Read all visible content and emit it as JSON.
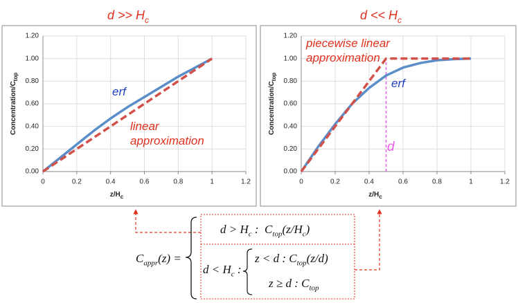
{
  "chart_data": [
    {
      "type": "line",
      "title": "d >> H",
      "title_subscript": "c",
      "x_label": "z/H",
      "x_label_subscript": "c",
      "y_label": "Concentration/C",
      "y_label_subscript": "top",
      "xlim": [
        0,
        1.2
      ],
      "xticks": [
        0,
        0.2,
        0.4,
        0.6,
        0.8,
        1,
        1.2
      ],
      "ylim": [
        0,
        1.2
      ],
      "yticks": [
        {
          "value": 0,
          "label": "0.00"
        },
        {
          "value": 0.2,
          "label": "0.20"
        },
        {
          "value": 0.4,
          "label": "0.40"
        },
        {
          "value": 0.6,
          "label": "0.60"
        },
        {
          "value": 0.8,
          "label": "0.80"
        },
        {
          "value": 1,
          "label": "1.00"
        },
        {
          "value": 1.2,
          "label": "1.20"
        }
      ],
      "grid": true,
      "series": [
        {
          "name": "erf",
          "color": "#5b8ec9",
          "x": [
            0,
            0.1,
            0.2,
            0.3,
            0.4,
            0.5,
            0.6,
            0.7,
            0.8,
            0.9,
            1
          ],
          "values": [
            0,
            0.12,
            0.24,
            0.36,
            0.47,
            0.57,
            0.66,
            0.75,
            0.84,
            0.92,
            1
          ]
        },
        {
          "name": "linear approximation",
          "color": "#d2504a",
          "dashed": true,
          "x": [
            0,
            1
          ],
          "values": [
            0,
            1
          ]
        }
      ]
    },
    {
      "type": "line",
      "title": "d << H",
      "title_subscript": "c",
      "x_label": "z/H",
      "x_label_subscript": "c",
      "y_label": "Concentration/C",
      "y_label_subscript": "top",
      "xlim": [
        0,
        1.2
      ],
      "xticks": [
        0,
        0.2,
        0.4,
        0.6,
        0.8,
        1,
        1.2
      ],
      "ylim": [
        0,
        1.2
      ],
      "yticks": [
        {
          "value": 0,
          "label": "0.00"
        },
        {
          "value": 0.2,
          "label": "0.20"
        },
        {
          "value": 0.4,
          "label": "0.40"
        },
        {
          "value": 0.6,
          "label": "0.60"
        },
        {
          "value": 0.8,
          "label": "0.80"
        },
        {
          "value": 1,
          "label": "1.00"
        },
        {
          "value": 1.2,
          "label": "1.20"
        }
      ],
      "grid": true,
      "series": [
        {
          "name": "erf",
          "color": "#5b8ec9",
          "x": [
            0,
            0.1,
            0.2,
            0.3,
            0.4,
            0.5,
            0.6,
            0.7,
            0.8,
            0.9,
            1
          ],
          "values": [
            0,
            0.22,
            0.42,
            0.6,
            0.74,
            0.85,
            0.92,
            0.96,
            0.985,
            0.995,
            1
          ]
        },
        {
          "name": "piecewise linear approximation",
          "color": "#d2504a",
          "dashed": true,
          "x": [
            0,
            0.5,
            1
          ],
          "values": [
            0,
            1,
            1
          ]
        }
      ],
      "marker": {
        "label": "d",
        "x": 0.5,
        "y": [
          0,
          1
        ],
        "color": "#e65ce6"
      }
    }
  ],
  "equation": {
    "lhs": [
      "C",
      "appr",
      "(z) ="
    ],
    "case1": [
      "d > H",
      "c",
      " :  C",
      "top",
      "(z/H",
      "c",
      ")"
    ],
    "case2_condition": [
      "d < H",
      "c",
      " :"
    ],
    "case2a": [
      "z < d : C",
      "top",
      "(z/d)"
    ],
    "case2b": [
      "z ≥ d : C",
      "top"
    ]
  }
}
